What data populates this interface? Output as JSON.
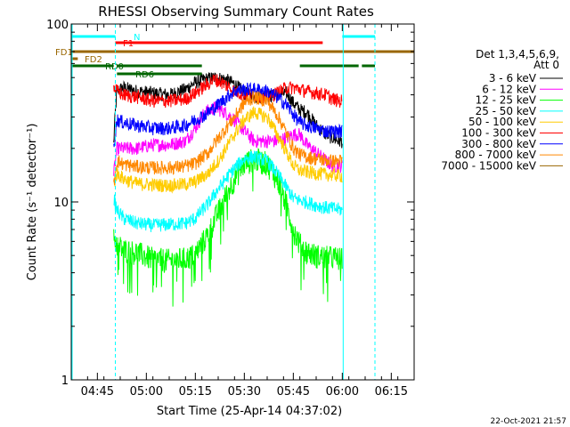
{
  "chart_data": {
    "type": "line",
    "title": "RHESSI Observing Summary Count Rates",
    "xlabel": "Start Time (25-Apr-14 04:37:02)",
    "ylabel": "Count Rate (s⁻¹ detector⁻¹)",
    "yscale": "log",
    "ylim": [
      1,
      100
    ],
    "x_minutes_range": [
      0,
      105
    ],
    "x_ticks": [
      {
        "min": 8,
        "label": "04:45"
      },
      {
        "min": 23,
        "label": "05:00"
      },
      {
        "min": 38,
        "label": "05:15"
      },
      {
        "min": 53,
        "label": "05:30"
      },
      {
        "min": 68,
        "label": "05:45"
      },
      {
        "min": 83,
        "label": "06:00"
      },
      {
        "min": 98,
        "label": "06:15"
      }
    ],
    "y_ticks": [
      {
        "value": 1,
        "label": "1"
      },
      {
        "value": 10,
        "label": "10"
      },
      {
        "value": 100,
        "label": "100"
      }
    ],
    "legend_title": [
      "Det 1,3,4,5,6,9,",
      "Att 0"
    ],
    "series": [
      {
        "name": "3 - 6 keV",
        "color": "#000000",
        "x": [
          13,
          14,
          16,
          20,
          25,
          30,
          35,
          38,
          41,
          44,
          47,
          50,
          53,
          56,
          60,
          63,
          66,
          68,
          70,
          72,
          75,
          78,
          80,
          82,
          83
        ],
        "y": [
          21,
          42,
          44,
          42,
          41,
          40,
          43,
          47,
          49,
          50,
          49,
          46,
          41,
          39,
          39,
          40,
          41,
          36,
          33,
          32,
          27,
          24,
          23,
          22,
          22
        ]
      },
      {
        "name": "6 - 12 keV",
        "color": "#ff00ff",
        "x": [
          13,
          14,
          16,
          20,
          25,
          30,
          35,
          38,
          41,
          44,
          47,
          50,
          53,
          56,
          60,
          63,
          66,
          68,
          70,
          72,
          75,
          78,
          80,
          82,
          83
        ],
        "y": [
          14,
          20,
          20,
          20,
          21,
          21,
          22,
          26,
          32,
          34,
          32,
          29,
          25,
          22,
          22,
          22,
          23,
          24,
          24,
          21,
          19,
          17,
          16,
          16,
          16
        ]
      },
      {
        "name": "12 - 25 keV",
        "color": "#00ff00",
        "x": [
          13,
          14,
          16,
          20,
          25,
          30,
          35,
          38,
          42,
          46,
          50,
          53,
          56,
          60,
          63,
          66,
          68,
          70,
          72,
          75,
          78,
          80,
          82,
          83
        ],
        "y": [
          6.5,
          5.8,
          5.4,
          5.2,
          4.8,
          4.7,
          4.8,
          5.1,
          6.6,
          9.5,
          13.5,
          16.5,
          17.5,
          16.5,
          13.5,
          9.5,
          7,
          5.8,
          5.3,
          5,
          4.9,
          4.9,
          4.8,
          4.8
        ]
      },
      {
        "name": "25 - 50 keV",
        "color": "#00ffff",
        "x": [
          13,
          14,
          16,
          20,
          25,
          30,
          35,
          38,
          42,
          46,
          50,
          53,
          56,
          60,
          63,
          66,
          68,
          70,
          72,
          75,
          78,
          80,
          82,
          83
        ],
        "y": [
          10.5,
          9,
          8.1,
          7.6,
          7.4,
          7.5,
          7.6,
          8.1,
          9.8,
          12.5,
          15.5,
          17.5,
          18,
          17,
          14.5,
          12,
          10.5,
          10.2,
          10,
          9.6,
          9.3,
          9.2,
          9.1,
          9
        ]
      },
      {
        "name": "50 - 100 keV",
        "color": "#ffcc00",
        "x": [
          13,
          14,
          16,
          20,
          25,
          30,
          35,
          38,
          42,
          46,
          50,
          53,
          56,
          60,
          63,
          66,
          68,
          70,
          72,
          75,
          78,
          80,
          82,
          83
        ],
        "y": [
          12.5,
          14.5,
          13.5,
          12.7,
          12.5,
          12.4,
          12.6,
          13,
          14.5,
          18,
          24,
          29,
          32,
          30,
          24,
          19,
          16,
          15,
          14.8,
          14.5,
          14.3,
          14.2,
          14.1,
          14
        ]
      },
      {
        "name": "100 - 300 keV",
        "color": "#ff0000",
        "x": [
          13,
          14,
          16,
          20,
          25,
          30,
          35,
          38,
          41,
          44,
          47,
          50,
          53,
          56,
          60,
          63,
          66,
          68,
          70,
          72,
          75,
          78,
          80,
          82,
          83
        ],
        "y": [
          44,
          42,
          40,
          39,
          37,
          37,
          38,
          41,
          45,
          49,
          46,
          42,
          40,
          40,
          39,
          41,
          44,
          44,
          43,
          42,
          41,
          40,
          38,
          37,
          37
        ]
      },
      {
        "name": "300 - 800 keV",
        "color": "#0000ff",
        "x": [
          13,
          14,
          16,
          20,
          25,
          30,
          35,
          38,
          41,
          44,
          47,
          50,
          53,
          56,
          60,
          63,
          66,
          68,
          70,
          72,
          75,
          78,
          80,
          82,
          83
        ],
        "y": [
          20,
          29,
          28,
          27,
          26,
          26,
          27,
          29,
          31,
          34,
          38,
          42,
          43,
          43,
          42,
          39,
          35,
          31,
          28,
          27,
          26,
          25,
          25,
          25,
          25
        ]
      },
      {
        "name": "800 - 7000 keV",
        "color": "#ff8800",
        "x": [
          13,
          14,
          16,
          20,
          25,
          30,
          35,
          38,
          42,
          46,
          50,
          53,
          56,
          60,
          63,
          66,
          68,
          70,
          72,
          75,
          78,
          80,
          82,
          83
        ],
        "y": [
          12.5,
          17,
          16.3,
          15.8,
          15.6,
          15.6,
          15.9,
          16.5,
          19,
          24,
          30,
          36,
          39,
          37,
          31,
          24,
          20,
          18.5,
          18,
          17.5,
          17.2,
          17,
          17,
          17
        ]
      },
      {
        "name": "7000 - 15000 keV",
        "color": "#996600",
        "x": [],
        "y": []
      }
    ],
    "flags": [
      {
        "label": "N",
        "color": "#00ffff",
        "segments": [
          [
            0,
            13.5
          ],
          [
            83,
            93
          ]
        ]
      },
      {
        "label": "F1",
        "color": "#ff0000",
        "segments": [
          [
            13.5,
            77
          ]
        ]
      },
      {
        "label": "FD1",
        "color": "#996600",
        "segments": [
          [
            0,
            105
          ]
        ]
      },
      {
        "label": "FD2",
        "color": "#996600",
        "segments": [
          [
            0,
            2
          ]
        ]
      },
      {
        "label": "RD0",
        "color": "#006600",
        "segments": [
          [
            0,
            13
          ],
          [
            14,
            40
          ],
          [
            70,
            88
          ],
          [
            89,
            93
          ]
        ]
      },
      {
        "label": "RD6",
        "color": "#006600",
        "segments": [
          [
            14,
            40
          ]
        ]
      }
    ],
    "vlines_solid": [
      0,
      83
    ],
    "vlines_dashed": [
      13.5,
      93
    ]
  },
  "footer": {
    "date": "22-Oct-2021 21:57"
  }
}
